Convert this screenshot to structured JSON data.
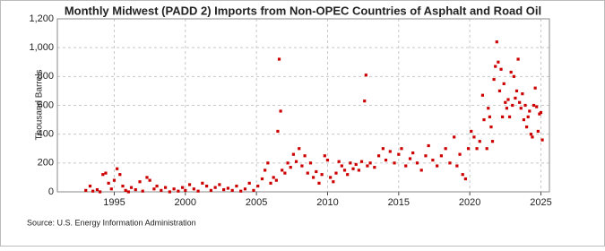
{
  "chart_data": {
    "type": "scatter",
    "title": "Monthly Midwest (PADD 2) Imports from Non-OPEC Countries of Asphalt and Road Oil",
    "y_label": "Thousand Barrels",
    "source": "Source: U.S. Energy Information Administration",
    "color": "#cc0000",
    "grid": true,
    "xlim": [
      1991,
      2025.6
    ],
    "xticks": [
      1995,
      2000,
      2005,
      2010,
      2015,
      2020,
      2025
    ],
    "ylim": [
      0,
      1200
    ],
    "yticks": [
      0,
      200,
      400,
      600,
      800,
      {
        "value": 1000,
        "label": "1,000"
      },
      {
        "value": 1200,
        "label": "1,200"
      }
    ],
    "series": [
      {
        "name": "Imports",
        "color": "#cc0000",
        "x": [
          1993.0,
          1993.3,
          1993.5,
          1993.8,
          1994.0,
          1994.2,
          1994.4,
          1994.6,
          1994.8,
          1995.0,
          1995.2,
          1995.4,
          1995.6,
          1995.8,
          1996.0,
          1996.2,
          1996.5,
          1996.8,
          1997.0,
          1997.3,
          1997.5,
          1997.8,
          1998.0,
          1998.3,
          1998.6,
          1998.9,
          1999.2,
          1999.5,
          1999.8,
          2000.0,
          2000.3,
          2000.6,
          2000.9,
          2001.2,
          2001.5,
          2001.8,
          2002.1,
          2002.4,
          2002.7,
          2003.0,
          2003.3,
          2003.6,
          2003.9,
          2004.2,
          2004.5,
          2004.8,
          2005.1,
          2005.4,
          2005.6,
          2005.8,
          2006.0,
          2006.2,
          2006.4,
          2006.5,
          2006.6,
          2006.7,
          2006.8,
          2007.0,
          2007.2,
          2007.4,
          2007.6,
          2007.8,
          2008.0,
          2008.2,
          2008.4,
          2008.6,
          2008.8,
          2009.0,
          2009.2,
          2009.4,
          2009.6,
          2009.8,
          2010.0,
          2010.2,
          2010.4,
          2010.6,
          2010.8,
          2011.0,
          2011.2,
          2011.4,
          2011.6,
          2011.8,
          2012.0,
          2012.2,
          2012.4,
          2012.6,
          2012.7,
          2012.8,
          2013.0,
          2013.3,
          2013.6,
          2013.9,
          2014.1,
          2014.4,
          2014.7,
          2015.0,
          2015.2,
          2015.5,
          2015.8,
          2016.0,
          2016.3,
          2016.6,
          2016.9,
          2017.1,
          2017.4,
          2017.7,
          2018.0,
          2018.3,
          2018.6,
          2018.9,
          2019.1,
          2019.3,
          2019.5,
          2019.7,
          2019.9,
          2020.1,
          2020.3,
          2020.5,
          2020.7,
          2020.9,
          2021.0,
          2021.2,
          2021.3,
          2021.4,
          2021.5,
          2021.6,
          2021.7,
          2021.8,
          2021.9,
          2022.0,
          2022.1,
          2022.2,
          2022.3,
          2022.4,
          2022.5,
          2022.6,
          2022.7,
          2022.8,
          2022.9,
          2023.0,
          2023.1,
          2023.2,
          2023.3,
          2023.4,
          2023.5,
          2023.6,
          2023.7,
          2023.8,
          2023.9,
          2024.0,
          2024.1,
          2024.2,
          2024.3,
          2024.4,
          2024.5,
          2024.6,
          2024.7,
          2024.8,
          2024.9,
          2025.0,
          2025.1
        ],
        "values": [
          10,
          40,
          5,
          15,
          0,
          120,
          130,
          60,
          20,
          80,
          160,
          120,
          40,
          10,
          0,
          30,
          15,
          70,
          5,
          100,
          80,
          20,
          40,
          10,
          30,
          0,
          20,
          5,
          30,
          10,
          50,
          20,
          5,
          60,
          40,
          10,
          30,
          50,
          15,
          25,
          10,
          40,
          5,
          20,
          60,
          10,
          40,
          90,
          150,
          200,
          60,
          100,
          80,
          420,
          920,
          560,
          150,
          130,
          200,
          170,
          260,
          210,
          300,
          180,
          250,
          130,
          200,
          100,
          140,
          60,
          120,
          250,
          220,
          100,
          70,
          130,
          210,
          180,
          150,
          120,
          200,
          160,
          190,
          150,
          210,
          630,
          810,
          180,
          200,
          170,
          250,
          300,
          220,
          280,
          200,
          260,
          300,
          180,
          230,
          270,
          200,
          150,
          250,
          320,
          220,
          180,
          250,
          300,
          200,
          380,
          180,
          260,
          120,
          90,
          300,
          420,
          380,
          300,
          350,
          670,
          500,
          300,
          580,
          520,
          450,
          350,
          780,
          870,
          1040,
          900,
          700,
          850,
          520,
          750,
          620,
          580,
          640,
          520,
          830,
          600,
          800,
          650,
          700,
          920,
          620,
          580,
          680,
          500,
          600,
          450,
          520,
          560,
          400,
          380,
          600,
          720,
          590,
          420,
          540,
          550,
          360
        ]
      }
    ]
  }
}
